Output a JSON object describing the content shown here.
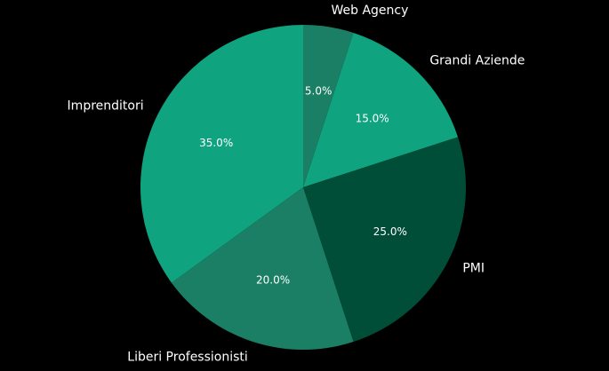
{
  "chart_data": {
    "type": "pie",
    "title": "",
    "start": "top",
    "direction": "clockwise",
    "categories": [
      "Web Agency",
      "Grandi Aziende",
      "PMI",
      "Liberi Professionisti",
      "Imprenditori"
    ],
    "values": [
      5,
      15,
      25,
      20,
      35
    ],
    "value_labels": [
      "5.0%",
      "15.0%",
      "25.0%",
      "20.0%",
      "35.0%"
    ],
    "colors": [
      "#1a7f64",
      "#10a37f",
      "#004d38",
      "#1a7f64",
      "#10a37f"
    ],
    "background": "#000000"
  }
}
